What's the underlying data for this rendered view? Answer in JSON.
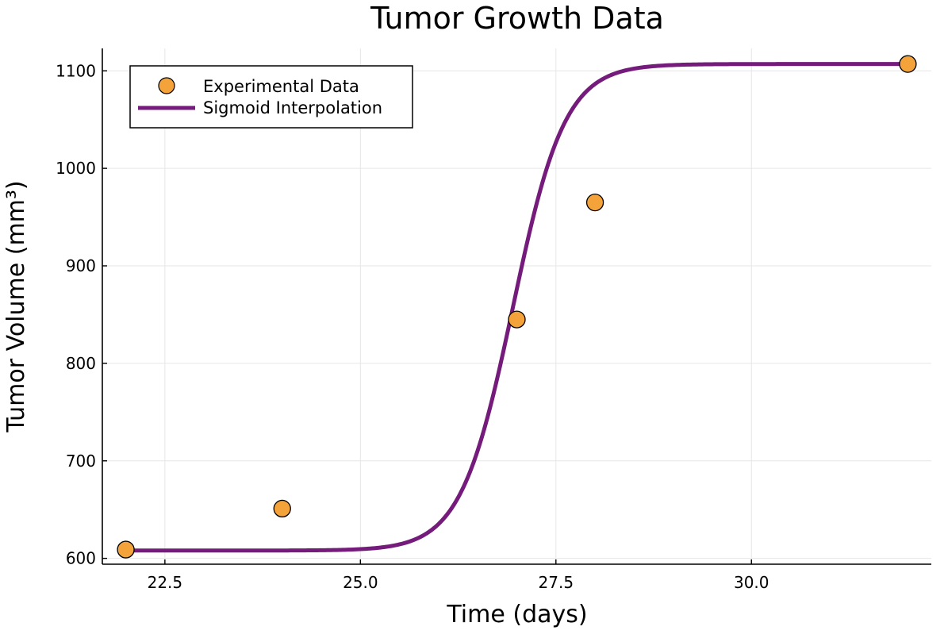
{
  "chart_data": {
    "type": "scatter",
    "title": "Tumor Growth Data",
    "xlabel": "Time (days)",
    "ylabel": "Tumor Volume (mm³)",
    "xlim": [
      21.7,
      32.3
    ],
    "ylim": [
      594,
      1123
    ],
    "grid": true,
    "legend_position": "top-left",
    "x_ticks": [
      22.5,
      25.0,
      27.5,
      30.0
    ],
    "x_tick_labels": [
      "22.5",
      "25.0",
      "27.5",
      "30.0"
    ],
    "y_ticks": [
      600,
      700,
      800,
      900,
      1000,
      1100
    ],
    "y_tick_labels": [
      "600",
      "700",
      "800",
      "900",
      "1000",
      "1100"
    ],
    "series": [
      {
        "name": "Experimental Data",
        "kind": "scatter",
        "color": "#f4a23a",
        "x": [
          22,
          24,
          27,
          28,
          32
        ],
        "y": [
          609,
          651,
          845,
          965,
          1107
        ]
      },
      {
        "name": "Sigmoid Interpolation",
        "kind": "line",
        "color": "#741b7c",
        "model": "logistic",
        "x_range": [
          22,
          32
        ],
        "lower": 608,
        "upper": 1107,
        "midpoint": 26.95,
        "rate": 3.0
      }
    ]
  }
}
